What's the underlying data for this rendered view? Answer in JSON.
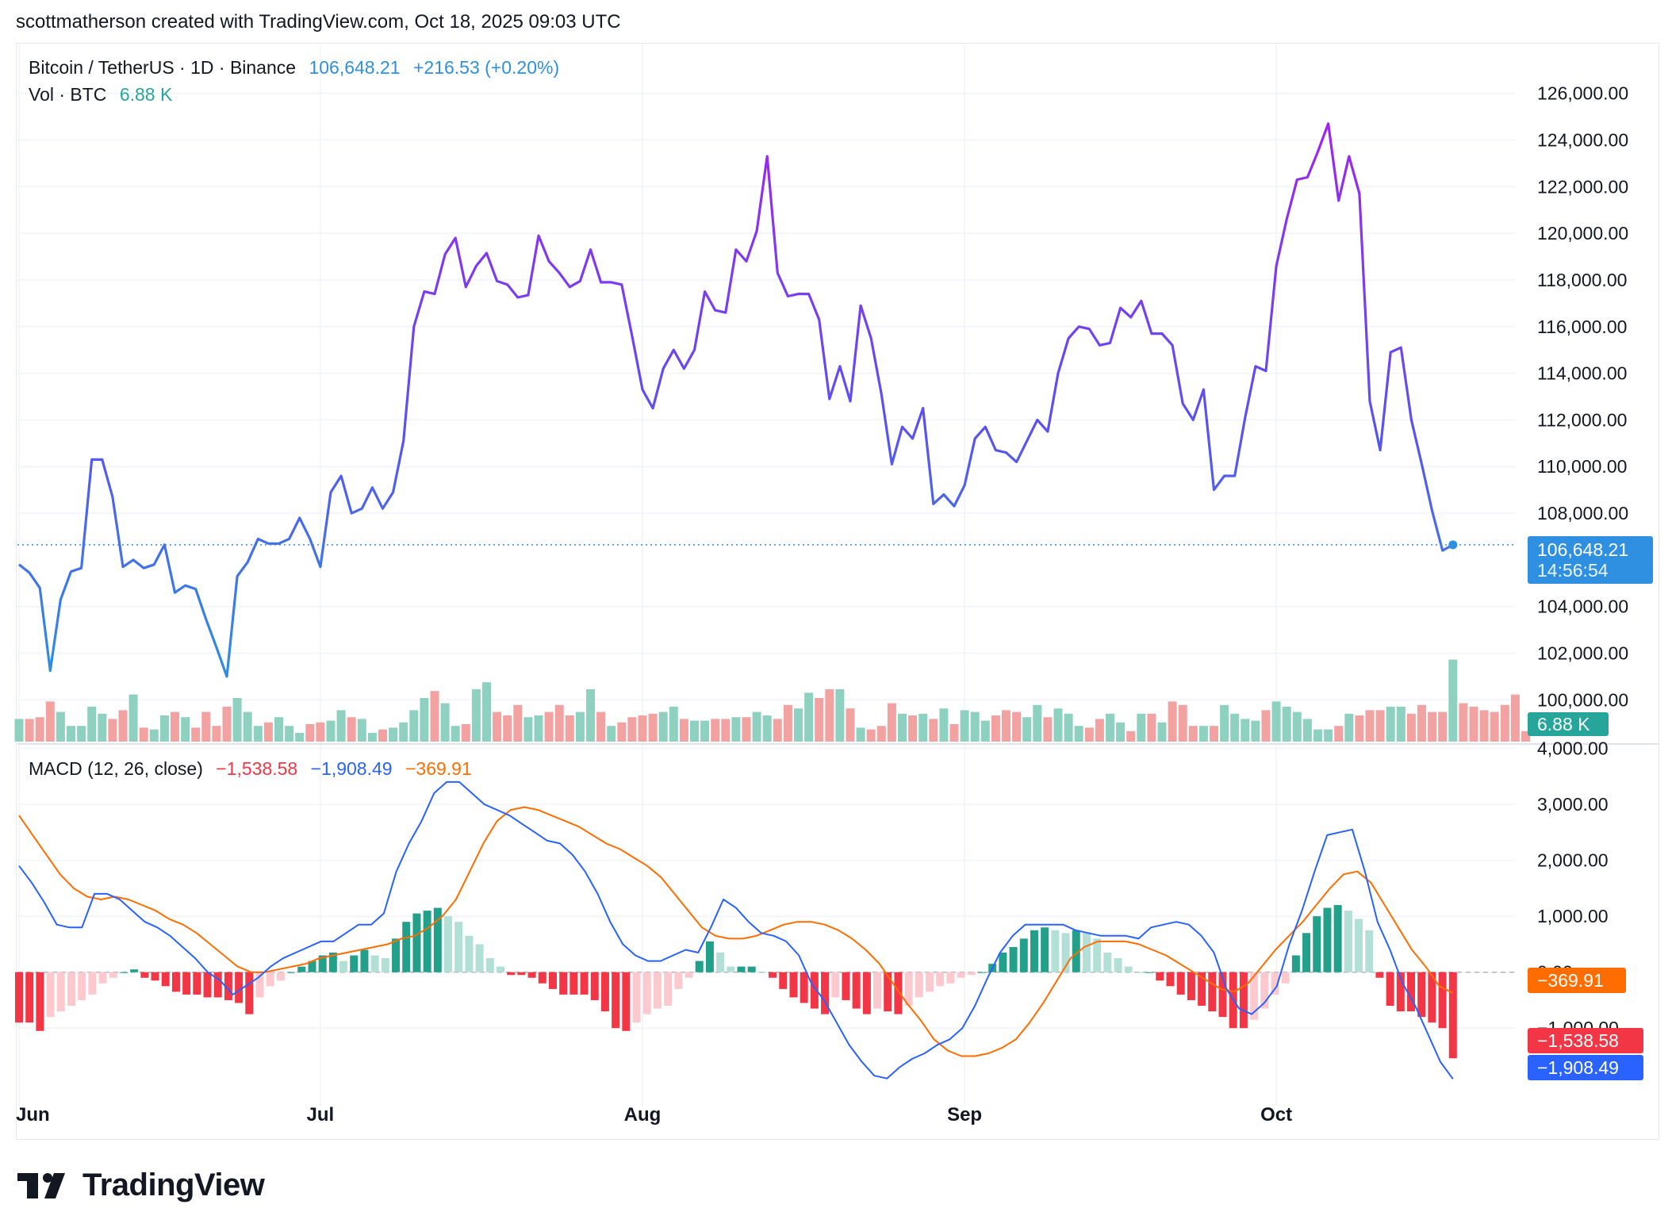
{
  "header": {
    "attribution": "scottmatherson created with TradingView.com, Oct 18, 2025 09:03 UTC"
  },
  "legend": {
    "symbol": "Bitcoin / TetherUS · 1D · Binance",
    "last_price": "106,648.21",
    "change": "+216.53 (+0.20%)",
    "volume_label": "Vol · BTC",
    "volume_value": "6.88 K",
    "macd_label": "MACD (12, 26, close)",
    "macd_hist": "−1,538.58",
    "macd_line": "−1,908.49",
    "macd_signal": "−369.91"
  },
  "price_tags": {
    "last": "106,648.21",
    "countdown": "14:56:54",
    "volume": "6.88 K",
    "signal": "−369.91",
    "hist": "−1,538.58",
    "macd": "−1,908.49"
  },
  "brand": {
    "name": "TradingView"
  },
  "colors": {
    "line_low": "#2f8fe0",
    "line_high": "#9c27e8",
    "vol_up": "#8fd1c0",
    "vol_down": "#f3a2a2",
    "macd_line": "#2962ff",
    "signal_line": "#ff6d00",
    "hist_up_strong": "#22a08a",
    "hist_up_weak": "#b2dfd6",
    "hist_down_strong": "#f23645",
    "hist_down_weak": "#fcc9cf",
    "tag_blue": "#2f8fe0",
    "tag_teal": "#26a69a",
    "tag_orange": "#ff6d00",
    "tag_red": "#f23645",
    "tag_macd": "#2962ff"
  },
  "chart_data": [
    {
      "type": "line",
      "name": "price",
      "x_axis_labels": [
        "Jun",
        "Jul",
        "Aug",
        "Sep",
        "Oct"
      ],
      "x_axis_label_day_index": [
        0,
        29,
        60,
        91,
        121
      ],
      "y_tick_labels": [
        "100,000.00",
        "102,000.00",
        "104,000.00",
        "108,000.00",
        "110,000.00",
        "112,000.00",
        "114,000.00",
        "116,000.00",
        "118,000.00",
        "120,000.00",
        "122,000.00",
        "124,000.00",
        "126,000.00"
      ],
      "y_ticks": [
        100000,
        102000,
        104000,
        108000,
        110000,
        112000,
        114000,
        116000,
        118000,
        120000,
        122000,
        124000,
        126000
      ],
      "ylim": [
        99400,
        126600
      ],
      "grid": true,
      "current_price": 106648.21,
      "start_day_index": 0,
      "values": [
        105800,
        105450,
        104800,
        101250,
        104300,
        105500,
        105650,
        110300,
        110300,
        108700,
        105700,
        106000,
        105650,
        105800,
        106650,
        104600,
        104900,
        104750,
        103450,
        102250,
        101000,
        105300,
        105900,
        106900,
        106700,
        106700,
        106900,
        107800,
        106900,
        105700,
        108900,
        109600,
        108000,
        108200,
        109100,
        108200,
        108900,
        111100,
        116000,
        117500,
        117400,
        119100,
        119800,
        117700,
        118600,
        119150,
        117950,
        117800,
        117250,
        117350,
        119900,
        118800,
        118300,
        117700,
        117950,
        119300,
        117900,
        117900,
        117800,
        115600,
        113300,
        112500,
        114200,
        115000,
        114200,
        115000,
        117500,
        116700,
        116600,
        119300,
        118800,
        120100,
        123300,
        118300,
        117300,
        117400,
        117400,
        116300,
        112900,
        114300,
        112800,
        116900,
        115500,
        113100,
        110100,
        111700,
        111200,
        112500,
        108400,
        108800,
        108300,
        109200,
        111200,
        111700,
        110700,
        110600,
        110200,
        111100,
        112000,
        111500,
        114000,
        115500,
        116000,
        115900,
        115200,
        115300,
        116800,
        116400,
        117100,
        115700,
        115700,
        115200,
        112700,
        112000,
        113300,
        109000,
        109600,
        109600,
        112100,
        114300,
        114100,
        118600,
        120600,
        122300,
        122400,
        123500,
        124700,
        121400,
        123300,
        121700,
        112800,
        110700,
        114900,
        115100,
        112000,
        110100,
        108100,
        106400,
        106648.21
      ]
    },
    {
      "type": "bar",
      "name": "volume",
      "unit": "K BTC",
      "values": [
        13,
        13,
        14,
        23,
        17,
        9,
        9,
        20,
        16,
        13,
        18,
        27,
        8,
        7,
        15,
        17,
        14,
        8,
        17,
        9,
        20,
        25,
        17,
        9,
        11,
        14,
        9,
        5,
        10,
        11,
        12,
        18,
        14,
        13,
        5,
        7,
        8,
        11,
        18,
        25,
        29,
        22,
        9,
        10,
        30,
        34,
        17,
        15,
        21,
        14,
        15,
        17,
        21,
        15,
        17,
        30,
        17,
        9,
        11,
        14,
        15,
        16,
        17,
        20,
        13,
        12,
        12,
        13,
        13,
        14,
        14,
        17,
        15,
        13,
        21,
        19,
        28,
        25,
        30,
        30,
        19,
        8,
        7,
        9,
        22,
        16,
        15,
        16,
        13,
        19,
        10,
        18,
        17,
        12,
        15,
        18,
        17,
        14,
        21,
        14,
        19,
        16,
        9,
        8,
        13,
        16,
        11,
        6,
        16,
        16,
        11,
        23,
        21,
        9,
        9,
        9,
        21,
        16,
        13,
        12,
        18,
        23,
        20,
        17,
        13,
        7,
        7,
        9,
        16,
        15,
        18,
        18,
        20,
        20,
        16,
        21,
        17,
        17,
        47,
        22,
        20,
        18,
        17,
        21,
        27,
        6
      ]
    },
    {
      "type": "line",
      "name": "MACD (12, 26, close)",
      "y_tick_labels": [
        "−1,000.00",
        "0.00",
        "1,000.00",
        "2,000.00",
        "3,000.00",
        "4,000.00"
      ],
      "y_ticks": [
        -1000,
        0,
        1000,
        2000,
        3000,
        4000
      ],
      "ylim": [
        -2400,
        4050
      ],
      "macd": [
        1900,
        1600,
        1250,
        850,
        800,
        800,
        1400,
        1400,
        1300,
        1100,
        900,
        800,
        650,
        450,
        250,
        0,
        -150,
        -400,
        -250,
        -100,
        100,
        250,
        350,
        450,
        550,
        550,
        700,
        850,
        850,
        1050,
        1800,
        2300,
        2700,
        3200,
        3400,
        3400,
        3200,
        3000,
        2900,
        2800,
        2650,
        2500,
        2350,
        2300,
        2100,
        1800,
        1400,
        900,
        500,
        300,
        200,
        200,
        300,
        400,
        350,
        800,
        1300,
        1150,
        900,
        700,
        650,
        550,
        300,
        -200,
        -500,
        -900,
        -1300,
        -1600,
        -1850,
        -1900,
        -1700,
        -1550,
        -1450,
        -1300,
        -1200,
        -1000,
        -600,
        -100,
        350,
        650,
        850,
        850,
        850,
        850,
        750,
        700,
        650,
        650,
        650,
        600,
        800,
        850,
        900,
        850,
        650,
        350,
        -300,
        -650,
        -750,
        -550,
        -250,
        500,
        1100,
        1800,
        2450,
        2500,
        2550,
        1800,
        900,
        400,
        -200,
        -600,
        -1100,
        -1600,
        -1908.49
      ],
      "signal": [
        2800,
        2450,
        2100,
        1750,
        1500,
        1350,
        1300,
        1350,
        1300,
        1200,
        1100,
        950,
        850,
        700,
        500,
        300,
        100,
        0,
        0,
        50,
        100,
        150,
        250,
        300,
        350,
        400,
        450,
        500,
        600,
        650,
        800,
        1000,
        1300,
        1800,
        2300,
        2700,
        2900,
        2950,
        2900,
        2800,
        2700,
        2600,
        2450,
        2300,
        2200,
        2050,
        1900,
        1700,
        1400,
        1100,
        800,
        650,
        600,
        600,
        650,
        750,
        850,
        900,
        900,
        850,
        750,
        600,
        400,
        150,
        -200,
        -550,
        -850,
        -1200,
        -1400,
        -1500,
        -1500,
        -1450,
        -1350,
        -1200,
        -900,
        -550,
        -150,
        250,
        450,
        550,
        550,
        550,
        500,
        400,
        300,
        150,
        0,
        -150,
        -300,
        -350,
        -200,
        100,
        400,
        650,
        900,
        1200,
        1500,
        1750,
        1800,
        1600,
        1200,
        800,
        400,
        100,
        -250,
        -369.91
      ],
      "histogram": [
        -900,
        -900,
        -1050,
        -800,
        -700,
        -600,
        -500,
        -400,
        -200,
        -100,
        0,
        50,
        -100,
        -150,
        -250,
        -350,
        -400,
        -400,
        -450,
        -450,
        -500,
        -550,
        -750,
        -450,
        -250,
        -150,
        0,
        100,
        200,
        300,
        350,
        200,
        300,
        400,
        300,
        250,
        600,
        900,
        1050,
        1100,
        1150,
        1000,
        900,
        650,
        500,
        250,
        100,
        -50,
        -50,
        -100,
        -200,
        -300,
        -400,
        -400,
        -400,
        -500,
        -700,
        -1000,
        -1050,
        -900,
        -750,
        -650,
        -600,
        -300,
        -100,
        200,
        550,
        350,
        100,
        100,
        100,
        0,
        -100,
        -300,
        -450,
        -550,
        -650,
        -750,
        -450,
        -500,
        -650,
        -750,
        -650,
        -700,
        -750,
        -600,
        -450,
        -350,
        -250,
        -200,
        -100,
        -50,
        0,
        150,
        350,
        450,
        600,
        750,
        800,
        750,
        700,
        750,
        700,
        600,
        350,
        250,
        100,
        0,
        0,
        -150,
        -250,
        -400,
        -500,
        -600,
        -700,
        -800,
        -1000,
        -1000,
        -850,
        -650,
        -400,
        -200,
        300,
        700,
        1000,
        1150,
        1200,
        1100,
        950,
        750,
        -100,
        -600,
        -700,
        -700,
        -800,
        -900,
        -1000,
        -1538.58
      ]
    }
  ]
}
